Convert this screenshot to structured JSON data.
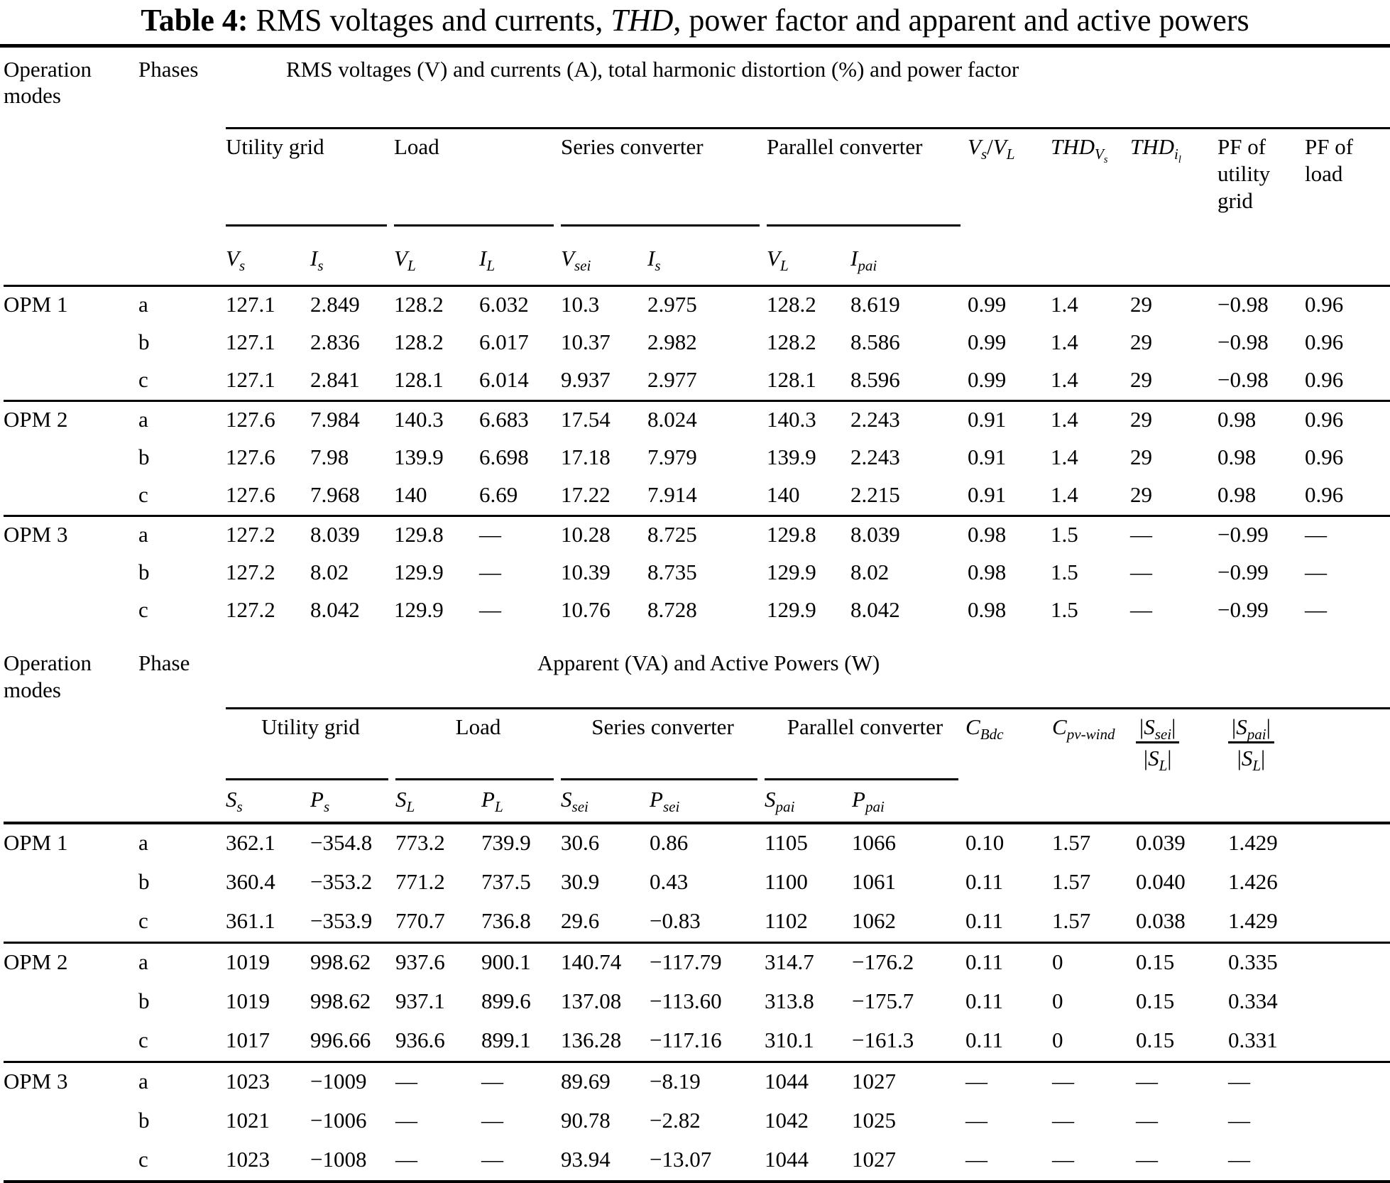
{
  "title": {
    "prefix": "Table 4:",
    "text1": "  RMS voltages and currents, ",
    "italic": "THD",
    "text2": ", power factor and apparent and active powers"
  },
  "section1": {
    "operation_modes_label": "Operation modes",
    "phases_label": "Phases",
    "span_header": "RMS voltages (V) and currents (A), total harmonic distortion (%) and power factor",
    "group_utility": "Utility grid",
    "group_load": "Load",
    "group_series": "Series converter",
    "group_parallel": "Parallel converter",
    "ratio_header": {
      "v1": "V",
      "s1": "s",
      "sep": "/",
      "v2": "V",
      "s2": "L"
    },
    "thd_v": {
      "base": "THD",
      "sub_base": "V",
      "sub_sub": "s"
    },
    "thd_i": {
      "base": "THD",
      "sub_base": "i",
      "sub_sub": "l"
    },
    "pf_utility": "PF of utility grid",
    "pf_load": "PF of load",
    "sub_cols": [
      {
        "base": "V",
        "sub": "s"
      },
      {
        "base": "I",
        "sub": "s"
      },
      {
        "base": "V",
        "sub": "L"
      },
      {
        "base": "I",
        "sub": "L"
      },
      {
        "base": "V",
        "sub": "sei"
      },
      {
        "base": "I",
        "sub": "s"
      },
      {
        "base": "V",
        "sub": "L"
      },
      {
        "base": "I",
        "sub": "pai"
      }
    ],
    "rows": [
      {
        "mode": "OPM 1",
        "phase": "a",
        "group_start": false,
        "values": [
          "127.1",
          "2.849",
          "128.2",
          "6.032",
          "10.3",
          "2.975",
          "128.2",
          "8.619",
          "0.99",
          "1.4",
          "29",
          "−0.98",
          "0.96"
        ]
      },
      {
        "mode": "",
        "phase": "b",
        "group_start": false,
        "values": [
          "127.1",
          "2.836",
          "128.2",
          "6.017",
          "10.37",
          "2.982",
          "128.2",
          "8.586",
          "0.99",
          "1.4",
          "29",
          "−0.98",
          "0.96"
        ]
      },
      {
        "mode": "",
        "phase": "c",
        "group_start": false,
        "values": [
          "127.1",
          "2.841",
          "128.1",
          "6.014",
          "9.937",
          "2.977",
          "128.1",
          "8.596",
          "0.99",
          "1.4",
          "29",
          "−0.98",
          "0.96"
        ]
      },
      {
        "mode": "OPM 2",
        "phase": "a",
        "group_start": true,
        "values": [
          "127.6",
          "7.984",
          "140.3",
          "6.683",
          "17.54",
          "8.024",
          "140.3",
          "2.243",
          "0.91",
          "1.4",
          "29",
          "0.98",
          "0.96"
        ]
      },
      {
        "mode": "",
        "phase": "b",
        "group_start": false,
        "values": [
          "127.6",
          "7.98",
          "139.9",
          "6.698",
          "17.18",
          "7.979",
          "139.9",
          "2.243",
          "0.91",
          "1.4",
          "29",
          "0.98",
          "0.96"
        ]
      },
      {
        "mode": "",
        "phase": "c",
        "group_start": false,
        "values": [
          "127.6",
          "7.968",
          "140",
          "6.69",
          "17.22",
          "7.914",
          "140",
          "2.215",
          "0.91",
          "1.4",
          "29",
          "0.98",
          "0.96"
        ]
      },
      {
        "mode": "OPM 3",
        "phase": "a",
        "group_start": true,
        "values": [
          "127.2",
          "8.039",
          "129.8",
          "—",
          "10.28",
          "8.725",
          "129.8",
          "8.039",
          "0.98",
          "1.5",
          "—",
          "−0.99",
          "—"
        ]
      },
      {
        "mode": "",
        "phase": "b",
        "group_start": false,
        "values": [
          "127.2",
          "8.02",
          "129.9",
          "—",
          "10.39",
          "8.735",
          "129.9",
          "8.02",
          "0.98",
          "1.5",
          "—",
          "−0.99",
          "—"
        ]
      },
      {
        "mode": "",
        "phase": "c",
        "group_start": false,
        "values": [
          "127.2",
          "8.042",
          "129.9",
          "—",
          "10.76",
          "8.728",
          "129.9",
          "8.042",
          "0.98",
          "1.5",
          "—",
          "−0.99",
          "—"
        ]
      }
    ]
  },
  "section2": {
    "operation_modes_label": "Operation modes",
    "phases_label": "Phase",
    "span_header": "Apparent (VA) and Active Powers (W)",
    "group_utility": "Utility grid",
    "group_load": "Load",
    "group_series": "Series converter",
    "group_parallel": "Parallel converter",
    "c_bdc": {
      "base": "C",
      "sub": "Bdc"
    },
    "c_pv": {
      "base": "C",
      "sub": "pv-wind"
    },
    "frac_sei": {
      "num_pre": "|",
      "num_base": "S",
      "num_sub": "sei",
      "num_post": "|",
      "den_pre": "|",
      "den_base": "S",
      "den_sub": "L",
      "den_post": "|"
    },
    "frac_pai": {
      "num_pre": "|",
      "num_base": "S",
      "num_sub": "pai",
      "num_post": "|",
      "den_pre": "|",
      "den_base": "S",
      "den_sub": "L",
      "den_post": "|"
    },
    "sub_cols": [
      {
        "base": "S",
        "sub": "s"
      },
      {
        "base": "P",
        "sub": "s"
      },
      {
        "base": "S",
        "sub": "L"
      },
      {
        "base": "P",
        "sub": "L"
      },
      {
        "base": "S",
        "sub": "sei"
      },
      {
        "base": "P",
        "sub": "sei"
      },
      {
        "base": "S",
        "sub": "pai"
      },
      {
        "base": "P",
        "sub": "pai"
      }
    ],
    "rows": [
      {
        "mode": "OPM 1",
        "phase": "a",
        "group_start": false,
        "values": [
          "362.1",
          "−354.8",
          "773.2",
          "739.9",
          "30.6",
          "0.86",
          "1105",
          "1066",
          "0.10",
          "1.57",
          "0.039",
          "1.429"
        ]
      },
      {
        "mode": "",
        "phase": "b",
        "group_start": false,
        "values": [
          "360.4",
          "−353.2",
          "771.2",
          "737.5",
          "30.9",
          "0.43",
          "1100",
          "1061",
          "0.11",
          "1.57",
          "0.040",
          "1.426"
        ]
      },
      {
        "mode": "",
        "phase": "c",
        "group_start": false,
        "values": [
          "361.1",
          "−353.9",
          "770.7",
          "736.8",
          "29.6",
          "−0.83",
          "1102",
          "1062",
          "0.11",
          "1.57",
          "0.038",
          "1.429"
        ]
      },
      {
        "mode": "OPM 2",
        "phase": "a",
        "group_start": true,
        "values": [
          "1019",
          "998.62",
          "937.6",
          "900.1",
          "140.74",
          "−117.79",
          "314.7",
          "−176.2",
          "0.11",
          "0",
          "0.15",
          "0.335"
        ]
      },
      {
        "mode": "",
        "phase": "b",
        "group_start": false,
        "values": [
          "1019",
          "998.62",
          "937.1",
          "899.6",
          "137.08",
          "−113.60",
          "313.8",
          "−175.7",
          "0.11",
          "0",
          "0.15",
          "0.334"
        ]
      },
      {
        "mode": "",
        "phase": "c",
        "group_start": false,
        "values": [
          "1017",
          "996.66",
          "936.6",
          "899.1",
          "136.28",
          "−117.16",
          "310.1",
          "−161.3",
          "0.11",
          "0",
          "0.15",
          "0.331"
        ]
      },
      {
        "mode": "OPM 3",
        "phase": "a",
        "group_start": true,
        "values": [
          "1023",
          "−1009",
          "—",
          "—",
          "89.69",
          "−8.19",
          "1044",
          "1027",
          "—",
          "—",
          "—",
          "—"
        ]
      },
      {
        "mode": "",
        "phase": "b",
        "group_start": false,
        "values": [
          "1021",
          "−1006",
          "—",
          "—",
          "90.78",
          "−2.82",
          "1042",
          "1025",
          "—",
          "—",
          "—",
          "—"
        ]
      },
      {
        "mode": "",
        "phase": "c",
        "group_start": false,
        "values": [
          "1023",
          "−1008",
          "—",
          "—",
          "93.94",
          "−13.07",
          "1044",
          "1027",
          "—",
          "—",
          "—",
          "—"
        ]
      }
    ]
  }
}
